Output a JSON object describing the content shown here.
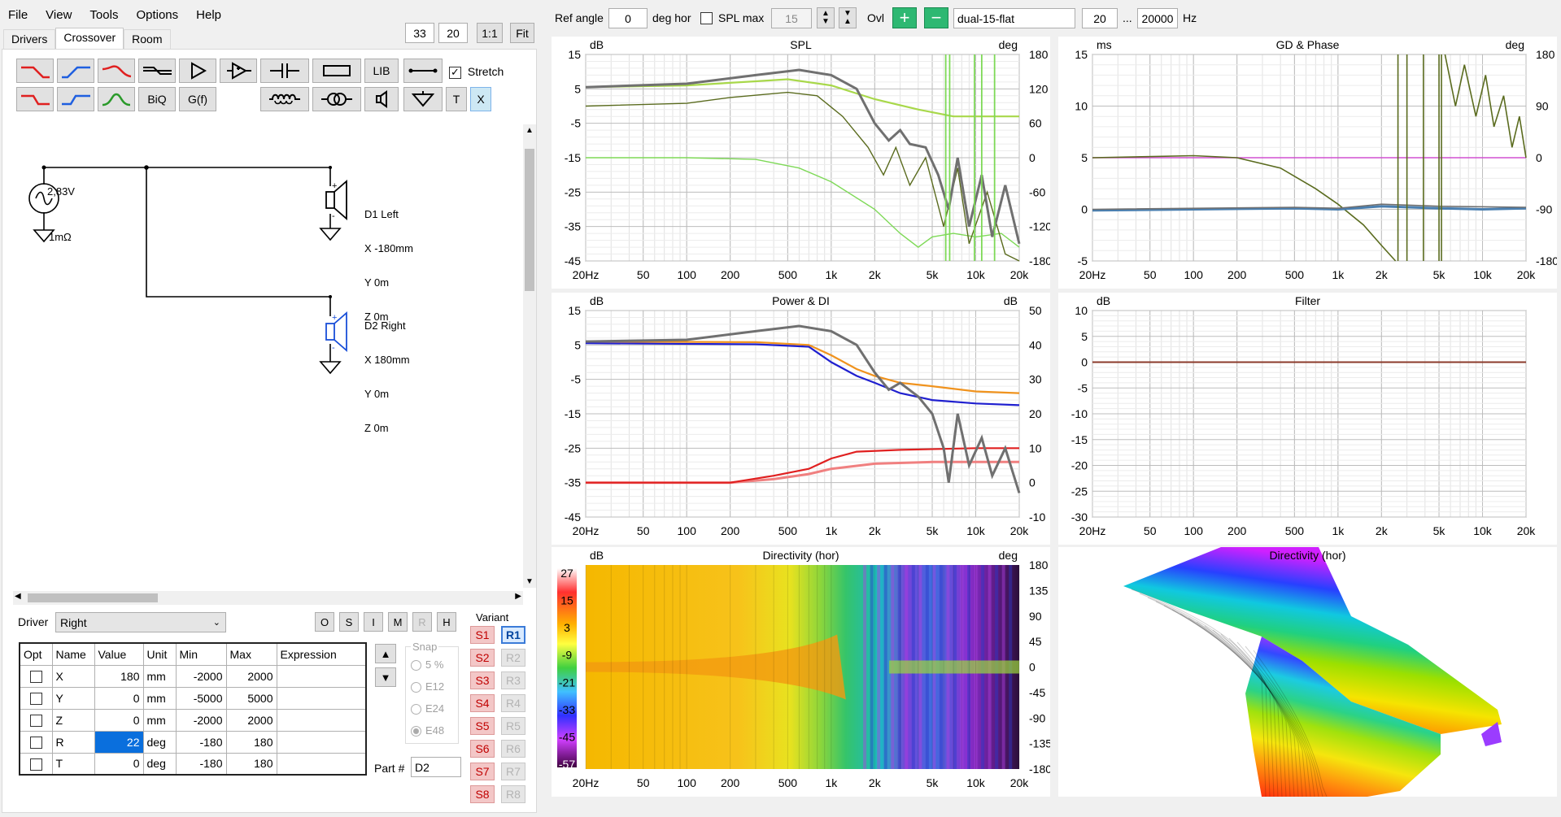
{
  "menu": [
    "File",
    "View",
    "Tools",
    "Options",
    "Help"
  ],
  "zoom": {
    "v1": "33",
    "v2": "20",
    "one": "1:1",
    "fit": "Fit"
  },
  "tabs": [
    "Drivers",
    "Crossover",
    "Room"
  ],
  "toolbar": {
    "lib": "LIB",
    "stretch": "Stretch",
    "biq": "BiQ",
    "gf": "G(f)",
    "t": "T",
    "x": "X"
  },
  "schematic": {
    "source_voltage": "2,83V",
    "source_impedance": "1mΩ",
    "d1": {
      "name": "D1 Left",
      "x": "X -180mm",
      "y": "Y 0m",
      "z": "Z 0m"
    },
    "d2": {
      "name": "D2 Right",
      "x": "X 180mm",
      "y": "Y 0m",
      "z": "Z 0m"
    }
  },
  "driver": {
    "label": "Driver",
    "selected": "Right",
    "buttons": [
      "O",
      "S",
      "I",
      "M",
      "R",
      "H"
    ]
  },
  "params": {
    "headers": [
      "Opt",
      "Name",
      "Value",
      "Unit",
      "Min",
      "Max",
      "Expression"
    ],
    "rows": [
      {
        "name": "X",
        "value": "180",
        "unit": "mm",
        "min": "-2000",
        "max": "2000"
      },
      {
        "name": "Y",
        "value": "0",
        "unit": "mm",
        "min": "-5000",
        "max": "5000"
      },
      {
        "name": "Z",
        "value": "0",
        "unit": "mm",
        "min": "-2000",
        "max": "2000"
      },
      {
        "name": "R",
        "value": "22",
        "unit": "deg",
        "min": "-180",
        "max": "180"
      },
      {
        "name": "T",
        "value": "0",
        "unit": "deg",
        "min": "-180",
        "max": "180"
      }
    ]
  },
  "snap": {
    "label": "Snap",
    "options": [
      "5 %",
      "E12",
      "E24",
      "E48"
    ]
  },
  "part": {
    "label": "Part #",
    "value": "D2"
  },
  "variant": {
    "label": "Variant",
    "s": [
      "S1",
      "S2",
      "S3",
      "S4",
      "S5",
      "S6",
      "S7",
      "S8"
    ],
    "r": [
      "R1",
      "R2",
      "R3",
      "R4",
      "R5",
      "R6",
      "R7",
      "R8"
    ]
  },
  "topbar": {
    "ref_angle_label": "Ref angle",
    "ref_angle": "0",
    "deg_hor": "deg hor",
    "spl_max_label": "SPL max",
    "spl_max": "15",
    "ovl": "Ovl",
    "curve_name": "dual-15-flat",
    "f_min": "20",
    "ellipsis": "...",
    "f_max": "20000",
    "hz": "Hz"
  },
  "freq_ticks": [
    "20Hz",
    "50",
    "100",
    "200",
    "500",
    "1k",
    "2k",
    "5k",
    "10k",
    "20k"
  ],
  "charts": {
    "spl": {
      "title": "SPL",
      "left_unit": "dB",
      "right_unit": "deg",
      "left_ticks": [
        "15",
        "5",
        "-5",
        "-15",
        "-25",
        "-35",
        "-45"
      ],
      "right_ticks": [
        "180",
        "120",
        "60",
        "0",
        "-60",
        "-120",
        "-180"
      ]
    },
    "gd": {
      "title": "GD & Phase",
      "left_unit": "ms",
      "right_unit": "deg",
      "left_ticks": [
        "15",
        "10",
        "5",
        "0",
        "-5"
      ],
      "right_ticks": [
        "180",
        "90",
        "0",
        "-90",
        "-180"
      ]
    },
    "power": {
      "title": "Power & DI",
      "left_unit": "dB",
      "right_unit": "dB",
      "left_ticks": [
        "15",
        "5",
        "-5",
        "-15",
        "-25",
        "-35",
        "-45"
      ],
      "right_ticks": [
        "50",
        "40",
        "30",
        "20",
        "10",
        "0",
        "-10"
      ]
    },
    "filter": {
      "title": "Filter",
      "left_unit": "dB",
      "left_ticks": [
        "10",
        "5",
        "0",
        "-5",
        "-10",
        "-15",
        "-20",
        "-25",
        "-30"
      ]
    },
    "dir": {
      "title": "Directivity (hor)",
      "left_unit": "dB",
      "right_unit": "deg",
      "scale_ticks": [
        "27",
        "15",
        "3",
        "-9",
        "-21",
        "-33",
        "-45",
        "-57"
      ],
      "right_ticks": [
        "180",
        "135",
        "90",
        "45",
        "0",
        "-45",
        "-90",
        "-135",
        "-180"
      ]
    },
    "dir3d": {
      "title": "Directivity (hor)"
    }
  },
  "colors": {
    "grid": "#c8c8c8",
    "gray_curve": "#707070",
    "olive": "#5a6b1e",
    "lightgreen": "#a8d84a",
    "brightgreen": "#7ed957",
    "orange": "#f0931e",
    "blue": "#1f1fcf",
    "red": "#e02020",
    "pink": "#f08080",
    "magenta": "#d050d0",
    "steel": "#4a7fb0"
  }
}
